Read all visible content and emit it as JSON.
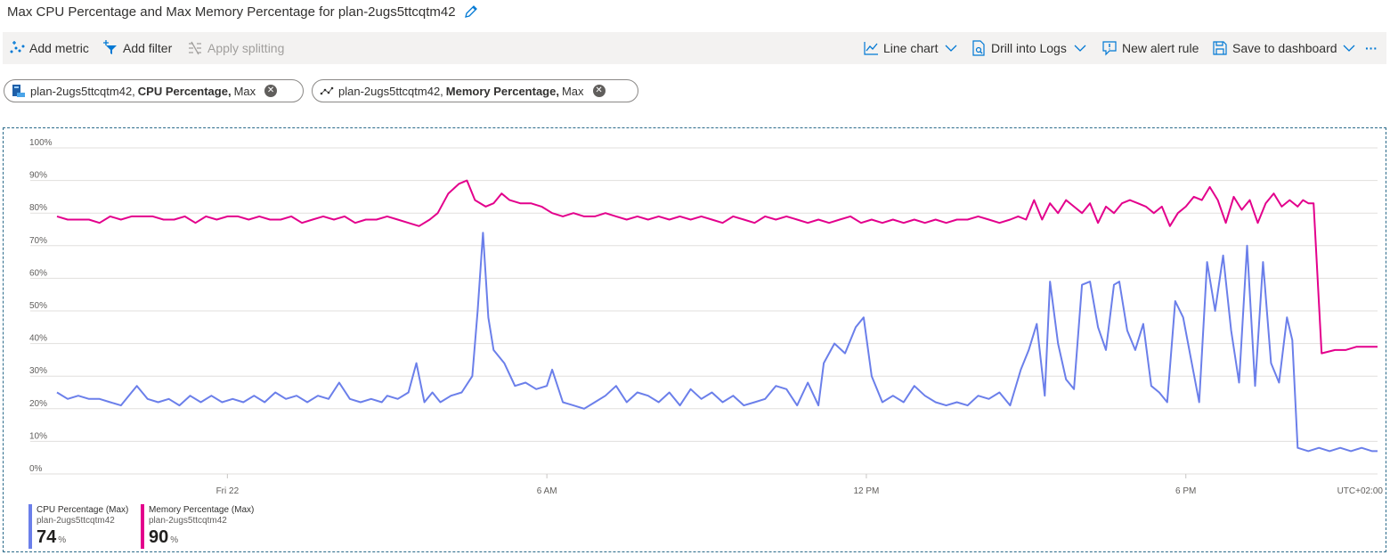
{
  "header": {
    "title": "Max CPU Percentage and Max Memory Percentage for plan-2ugs5ttcqtm42"
  },
  "toolbar": {
    "add_metric": "Add metric",
    "add_filter": "Add filter",
    "apply_splitting": "Apply splitting",
    "line_chart": "Line chart",
    "drill_logs": "Drill into Logs",
    "new_alert": "New alert rule",
    "save_dashboard": "Save to dashboard",
    "more": "···"
  },
  "pills": [
    {
      "resource": "plan-2ugs5ttcqtm42,",
      "metric": "CPU Percentage,",
      "agg": "Max"
    },
    {
      "resource": "plan-2ugs5ttcqtm42,",
      "metric": "Memory Percentage,",
      "agg": "Max"
    }
  ],
  "legend": [
    {
      "name": "CPU Percentage (Max)",
      "resource": "plan-2ugs5ttcqtm42",
      "value": "74",
      "unit": "%",
      "color": "#6b7fea"
    },
    {
      "name": "Memory Percentage (Max)",
      "resource": "plan-2ugs5ttcqtm42",
      "value": "90",
      "unit": "%",
      "color": "#e3008c"
    }
  ],
  "chart_data": {
    "type": "line",
    "x_unit": "hours after Fri 22 00:00 (UTC+02:00)",
    "xlim": [
      -3.2,
      21.6
    ],
    "ylim": [
      0,
      100
    ],
    "y_ticks": [
      0,
      10,
      20,
      30,
      40,
      50,
      60,
      70,
      80,
      90,
      100
    ],
    "y_tick_labels": [
      "0%",
      "10%",
      "20%",
      "30%",
      "40%",
      "50%",
      "60%",
      "70%",
      "80%",
      "90%",
      "100%"
    ],
    "x_ticks": [
      {
        "x": 0,
        "label": "Fri 22"
      },
      {
        "x": 6,
        "label": "6 AM"
      },
      {
        "x": 12,
        "label": "12 PM"
      },
      {
        "x": 18,
        "label": "6 PM"
      }
    ],
    "timezone_label": "UTC+02:00",
    "grid": true,
    "series": [
      {
        "name": "CPU Percentage (Max)",
        "color": "#6b7fea",
        "points": [
          [
            -3.2,
            25
          ],
          [
            -3.0,
            23
          ],
          [
            -2.8,
            24
          ],
          [
            -2.6,
            23
          ],
          [
            -2.4,
            23
          ],
          [
            -2.2,
            22
          ],
          [
            -2.0,
            21
          ],
          [
            -1.8,
            25
          ],
          [
            -1.7,
            27
          ],
          [
            -1.5,
            23
          ],
          [
            -1.3,
            22
          ],
          [
            -1.1,
            23
          ],
          [
            -0.9,
            21
          ],
          [
            -0.7,
            24
          ],
          [
            -0.5,
            22
          ],
          [
            -0.3,
            24
          ],
          [
            -0.1,
            22
          ],
          [
            0.1,
            23
          ],
          [
            0.3,
            22
          ],
          [
            0.5,
            24
          ],
          [
            0.7,
            22
          ],
          [
            0.9,
            25
          ],
          [
            1.1,
            23
          ],
          [
            1.3,
            24
          ],
          [
            1.5,
            22
          ],
          [
            1.7,
            24
          ],
          [
            1.9,
            23
          ],
          [
            2.1,
            28
          ],
          [
            2.3,
            23
          ],
          [
            2.5,
            22
          ],
          [
            2.7,
            23
          ],
          [
            2.9,
            22
          ],
          [
            3.0,
            24
          ],
          [
            3.2,
            23
          ],
          [
            3.4,
            25
          ],
          [
            3.55,
            34
          ],
          [
            3.7,
            22
          ],
          [
            3.85,
            25
          ],
          [
            4.0,
            22
          ],
          [
            4.2,
            24
          ],
          [
            4.4,
            25
          ],
          [
            4.6,
            30
          ],
          [
            4.7,
            50
          ],
          [
            4.8,
            74
          ],
          [
            4.9,
            48
          ],
          [
            5.0,
            38
          ],
          [
            5.2,
            34
          ],
          [
            5.4,
            27
          ],
          [
            5.6,
            28
          ],
          [
            5.8,
            26
          ],
          [
            6.0,
            27
          ],
          [
            6.1,
            32
          ],
          [
            6.3,
            22
          ],
          [
            6.5,
            21
          ],
          [
            6.7,
            20
          ],
          [
            6.9,
            22
          ],
          [
            7.1,
            24
          ],
          [
            7.3,
            27
          ],
          [
            7.5,
            22
          ],
          [
            7.7,
            25
          ],
          [
            7.9,
            24
          ],
          [
            8.1,
            22
          ],
          [
            8.3,
            25
          ],
          [
            8.5,
            21
          ],
          [
            8.7,
            26
          ],
          [
            8.9,
            23
          ],
          [
            9.1,
            25
          ],
          [
            9.3,
            22
          ],
          [
            9.5,
            24
          ],
          [
            9.7,
            21
          ],
          [
            9.9,
            22
          ],
          [
            10.1,
            23
          ],
          [
            10.3,
            27
          ],
          [
            10.5,
            26
          ],
          [
            10.7,
            21
          ],
          [
            10.9,
            28
          ],
          [
            11.1,
            21
          ],
          [
            11.2,
            34
          ],
          [
            11.4,
            40
          ],
          [
            11.6,
            37
          ],
          [
            11.8,
            45
          ],
          [
            11.95,
            48
          ],
          [
            12.1,
            30
          ],
          [
            12.3,
            22
          ],
          [
            12.5,
            24
          ],
          [
            12.7,
            22
          ],
          [
            12.9,
            27
          ],
          [
            13.1,
            24
          ],
          [
            13.3,
            22
          ],
          [
            13.5,
            21
          ],
          [
            13.7,
            22
          ],
          [
            13.9,
            21
          ],
          [
            14.1,
            24
          ],
          [
            14.3,
            23
          ],
          [
            14.5,
            25
          ],
          [
            14.7,
            21
          ],
          [
            14.9,
            32
          ],
          [
            15.05,
            38
          ],
          [
            15.2,
            46
          ],
          [
            15.35,
            24
          ],
          [
            15.45,
            59
          ],
          [
            15.6,
            40
          ],
          [
            15.75,
            29
          ],
          [
            15.9,
            26
          ],
          [
            16.05,
            58
          ],
          [
            16.2,
            59
          ],
          [
            16.35,
            45
          ],
          [
            16.5,
            38
          ],
          [
            16.65,
            58
          ],
          [
            16.75,
            59
          ],
          [
            16.9,
            44
          ],
          [
            17.05,
            38
          ],
          [
            17.2,
            46
          ],
          [
            17.35,
            27
          ],
          [
            17.5,
            25
          ],
          [
            17.65,
            22
          ],
          [
            17.8,
            53
          ],
          [
            17.95,
            48
          ],
          [
            18.1,
            35
          ],
          [
            18.25,
            22
          ],
          [
            18.4,
            65
          ],
          [
            18.55,
            50
          ],
          [
            18.7,
            67
          ],
          [
            18.85,
            44
          ],
          [
            19.0,
            28
          ],
          [
            19.15,
            70
          ],
          [
            19.3,
            27
          ],
          [
            19.45,
            65
          ],
          [
            19.6,
            34
          ],
          [
            19.75,
            28
          ],
          [
            19.9,
            48
          ],
          [
            20.0,
            41
          ],
          [
            20.1,
            8
          ],
          [
            20.3,
            7
          ],
          [
            20.5,
            8
          ],
          [
            20.7,
            7
          ],
          [
            20.9,
            8
          ],
          [
            21.1,
            7
          ],
          [
            21.3,
            8
          ],
          [
            21.5,
            7
          ],
          [
            21.6,
            7
          ]
        ]
      },
      {
        "name": "Memory Percentage (Max)",
        "color": "#e3008c",
        "points": [
          [
            -3.2,
            79
          ],
          [
            -3.0,
            78
          ],
          [
            -2.8,
            78
          ],
          [
            -2.6,
            78
          ],
          [
            -2.4,
            77
          ],
          [
            -2.2,
            79
          ],
          [
            -2.0,
            78
          ],
          [
            -1.8,
            79
          ],
          [
            -1.6,
            79
          ],
          [
            -1.4,
            79
          ],
          [
            -1.2,
            78
          ],
          [
            -1.0,
            78
          ],
          [
            -0.8,
            79
          ],
          [
            -0.6,
            77
          ],
          [
            -0.4,
            79
          ],
          [
            -0.2,
            78
          ],
          [
            0.0,
            79
          ],
          [
            0.2,
            79
          ],
          [
            0.4,
            78
          ],
          [
            0.6,
            79
          ],
          [
            0.8,
            78
          ],
          [
            1.0,
            78
          ],
          [
            1.2,
            79
          ],
          [
            1.4,
            77
          ],
          [
            1.6,
            78
          ],
          [
            1.8,
            79
          ],
          [
            2.0,
            78
          ],
          [
            2.2,
            79
          ],
          [
            2.4,
            77
          ],
          [
            2.6,
            78
          ],
          [
            2.8,
            78
          ],
          [
            3.0,
            79
          ],
          [
            3.2,
            78
          ],
          [
            3.4,
            77
          ],
          [
            3.6,
            76
          ],
          [
            3.8,
            78
          ],
          [
            3.95,
            80
          ],
          [
            4.15,
            86
          ],
          [
            4.35,
            89
          ],
          [
            4.5,
            90
          ],
          [
            4.65,
            84
          ],
          [
            4.85,
            82
          ],
          [
            5.0,
            83
          ],
          [
            5.15,
            86
          ],
          [
            5.3,
            84
          ],
          [
            5.5,
            83
          ],
          [
            5.7,
            83
          ],
          [
            5.9,
            82
          ],
          [
            6.1,
            80
          ],
          [
            6.3,
            79
          ],
          [
            6.5,
            80
          ],
          [
            6.7,
            79
          ],
          [
            6.9,
            79
          ],
          [
            7.1,
            80
          ],
          [
            7.3,
            79
          ],
          [
            7.5,
            78
          ],
          [
            7.7,
            79
          ],
          [
            7.9,
            78
          ],
          [
            8.1,
            79
          ],
          [
            8.3,
            78
          ],
          [
            8.5,
            79
          ],
          [
            8.7,
            78
          ],
          [
            8.9,
            79
          ],
          [
            9.1,
            78
          ],
          [
            9.3,
            77
          ],
          [
            9.5,
            79
          ],
          [
            9.7,
            78
          ],
          [
            9.9,
            77
          ],
          [
            10.1,
            79
          ],
          [
            10.3,
            78
          ],
          [
            10.5,
            79
          ],
          [
            10.7,
            78
          ],
          [
            10.9,
            77
          ],
          [
            11.1,
            78
          ],
          [
            11.3,
            77
          ],
          [
            11.5,
            78
          ],
          [
            11.7,
            79
          ],
          [
            11.9,
            77
          ],
          [
            12.1,
            78
          ],
          [
            12.3,
            77
          ],
          [
            12.5,
            78
          ],
          [
            12.7,
            77
          ],
          [
            12.9,
            78
          ],
          [
            13.1,
            77
          ],
          [
            13.3,
            78
          ],
          [
            13.5,
            77
          ],
          [
            13.7,
            78
          ],
          [
            13.9,
            78
          ],
          [
            14.1,
            79
          ],
          [
            14.3,
            78
          ],
          [
            14.5,
            77
          ],
          [
            14.7,
            78
          ],
          [
            14.85,
            79
          ],
          [
            15.0,
            78
          ],
          [
            15.15,
            84
          ],
          [
            15.3,
            78
          ],
          [
            15.45,
            83
          ],
          [
            15.6,
            80
          ],
          [
            15.75,
            84
          ],
          [
            15.9,
            82
          ],
          [
            16.05,
            80
          ],
          [
            16.2,
            83
          ],
          [
            16.35,
            77
          ],
          [
            16.5,
            82
          ],
          [
            16.65,
            80
          ],
          [
            16.8,
            83
          ],
          [
            16.95,
            84
          ],
          [
            17.1,
            83
          ],
          [
            17.25,
            82
          ],
          [
            17.4,
            80
          ],
          [
            17.55,
            82
          ],
          [
            17.7,
            76
          ],
          [
            17.85,
            80
          ],
          [
            18.0,
            82
          ],
          [
            18.15,
            85
          ],
          [
            18.3,
            84
          ],
          [
            18.45,
            88
          ],
          [
            18.6,
            84
          ],
          [
            18.75,
            77
          ],
          [
            18.9,
            85
          ],
          [
            19.05,
            81
          ],
          [
            19.2,
            84
          ],
          [
            19.35,
            77
          ],
          [
            19.5,
            83
          ],
          [
            19.65,
            86
          ],
          [
            19.8,
            82
          ],
          [
            19.95,
            84
          ],
          [
            20.1,
            82
          ],
          [
            20.2,
            84
          ],
          [
            20.3,
            83
          ],
          [
            20.4,
            83
          ],
          [
            20.55,
            37
          ],
          [
            20.8,
            38
          ],
          [
            21.0,
            38
          ],
          [
            21.2,
            39
          ],
          [
            21.4,
            39
          ],
          [
            21.6,
            39
          ]
        ]
      }
    ]
  }
}
